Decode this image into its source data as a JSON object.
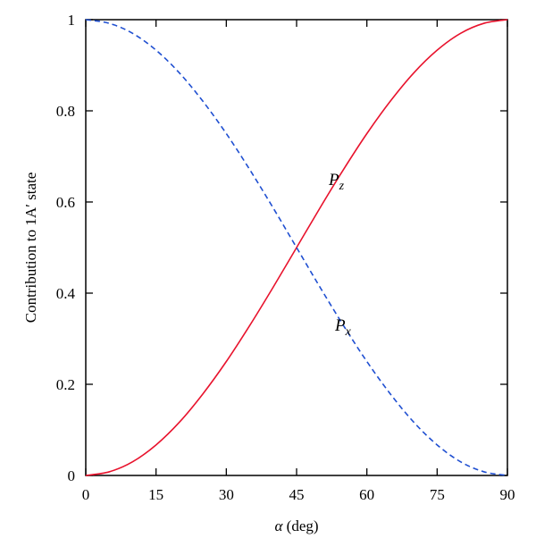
{
  "chart_data": {
    "type": "line",
    "title": "",
    "xlabel_symbol": "α",
    "xlabel_unit": "(deg)",
    "ylabel": "Contribution to 1A′ state",
    "xlim": [
      0,
      90
    ],
    "ylim": [
      0,
      1
    ],
    "xticks": [
      0,
      15,
      30,
      45,
      60,
      75,
      90
    ],
    "yticks": [
      0,
      0.2,
      0.4,
      0.6,
      0.8,
      1
    ],
    "ytick_labels": [
      "0",
      "0.2",
      "0.4",
      "0.6",
      "0.8",
      "1"
    ],
    "grid": false,
    "legend": "none",
    "x": [
      0,
      5,
      10,
      15,
      20,
      25,
      30,
      35,
      40,
      45,
      50,
      55,
      60,
      65,
      70,
      75,
      80,
      85,
      90
    ],
    "series": [
      {
        "name": "P",
        "subscript": "z",
        "color": "#e8132d",
        "style": "solid",
        "values": [
          0,
          0.008,
          0.03,
          0.067,
          0.117,
          0.179,
          0.25,
          0.329,
          0.413,
          0.5,
          0.587,
          0.671,
          0.75,
          0.821,
          0.883,
          0.933,
          0.97,
          0.992,
          1
        ]
      },
      {
        "name": "P",
        "subscript": "x",
        "color": "#1f4fd1",
        "style": "dashed",
        "values": [
          1,
          0.992,
          0.97,
          0.933,
          0.883,
          0.821,
          0.75,
          0.671,
          0.587,
          0.5,
          0.413,
          0.329,
          0.25,
          0.179,
          0.117,
          0.067,
          0.03,
          0.008,
          0
        ]
      }
    ]
  }
}
